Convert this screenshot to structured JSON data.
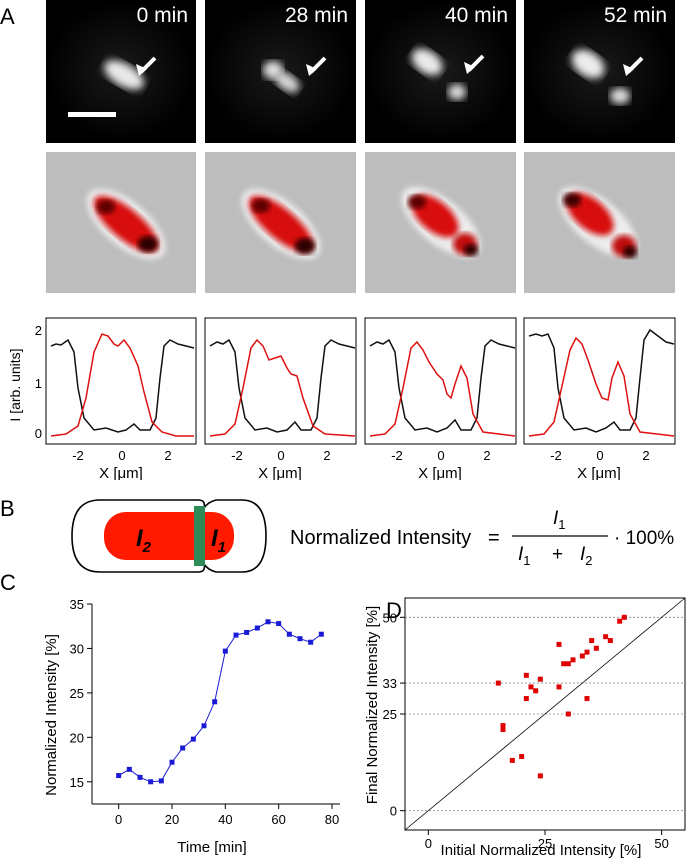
{
  "figure": {
    "panel_labels": {
      "a": "A",
      "b": "B",
      "c": "C",
      "d": "D"
    },
    "time_labels": [
      "0 min",
      "28 min",
      "40 min",
      "52 min"
    ],
    "profiles": {
      "ylabel": "I [arb. units]",
      "xlabel": "X [μm]",
      "xticks": [
        "-2",
        "0",
        "2"
      ],
      "yticks": [
        "0",
        "1",
        "2"
      ]
    },
    "schematic": {
      "label_i2": "I",
      "label_i2_sub": "2",
      "label_i1": "I",
      "label_i1_sub": "1",
      "colors": {
        "cell_fill": "#ff1a00",
        "septum": "#2e8b57"
      }
    },
    "equation": {
      "lhs": "Normalized Intensity",
      "equals": "=",
      "num": "I",
      "num_sub": "1",
      "den_a": "I",
      "den_a_sub": "1",
      "plus": "+",
      "den_b": "I",
      "den_b_sub": "2",
      "tail": "· 100%"
    }
  },
  "chart_data": [
    {
      "id": "C",
      "type": "line",
      "xlabel": "Time [min]",
      "ylabel": "Normalized Intensity [%]",
      "xlim": [
        -10,
        83
      ],
      "ylim": [
        12.5,
        35
      ],
      "xticks": [
        0,
        20,
        40,
        60,
        80
      ],
      "yticks": [
        15,
        20,
        25,
        30,
        35
      ],
      "color": "#1a1ad6",
      "x": [
        0,
        4,
        8,
        12,
        16,
        20,
        24,
        28,
        32,
        36,
        40,
        44,
        48,
        52,
        56,
        60,
        64,
        68,
        72,
        76
      ],
      "y": [
        15.7,
        16.4,
        15.5,
        15.0,
        15.1,
        17.2,
        18.8,
        19.8,
        21.3,
        24.0,
        29.7,
        31.5,
        31.8,
        32.3,
        33.0,
        32.8,
        31.6,
        31.1,
        30.7,
        31.6
      ]
    },
    {
      "id": "D",
      "type": "scatter",
      "xlabel": "Initial Normalized Intensity [%]",
      "ylabel": "Final Normalized Intensity [%]",
      "xlim": [
        -5,
        55
      ],
      "ylim": [
        -5,
        55
      ],
      "xticks": [
        0,
        25,
        50
      ],
      "yticks": [
        0,
        25,
        33,
        50
      ],
      "hlines": [
        0,
        25,
        33,
        50
      ],
      "color": "#e00000",
      "x": [
        15,
        16,
        16,
        18,
        20,
        21,
        21,
        22,
        23,
        24,
        24,
        28,
        28,
        29,
        30,
        30,
        31,
        33,
        34,
        34,
        35,
        36,
        38,
        39,
        41,
        42
      ],
      "y": [
        33,
        22,
        21,
        13,
        14,
        29,
        35,
        32,
        31,
        9,
        34,
        32,
        43,
        38,
        38,
        25,
        39,
        40,
        29,
        41,
        44,
        42,
        45,
        44,
        49,
        50
      ]
    }
  ]
}
